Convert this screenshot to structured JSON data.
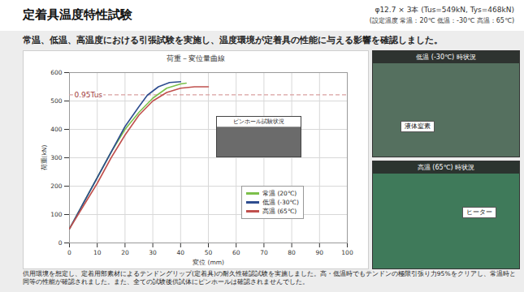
{
  "header": {
    "title": "定着具温度特性試験",
    "spec": "φ12.7 × 3本 (Tus=549kN, Tys=468kN)",
    "temperatures": "(設定温度 常温：20℃ 低温：-30℃ 高温：65℃)",
    "subtitle": "常温、低温、高温度における引張試験を実施し、温度環境が定着具の性能に与える影響を確認しました。"
  },
  "chart_data": {
    "type": "line",
    "title": "荷重－変位量曲線",
    "x_label": "変位 (mm)",
    "y_label": "荷重(kN)",
    "xlim": [
      0,
      100
    ],
    "xticks": [
      0,
      10,
      20,
      30,
      40,
      50,
      60,
      70,
      80,
      90,
      100
    ],
    "ylim": [
      0,
      600
    ],
    "yticks": [
      0,
      100,
      200,
      300,
      400,
      500,
      600
    ],
    "grid": true,
    "legend": "lower right",
    "annotation": {
      "text": "0.95Tus",
      "y": 521.55,
      "line_style": "dashed",
      "color": "#d9a0a0"
    },
    "series": [
      {
        "name": "常温 (20℃)",
        "color": "#7cc04a",
        "x": [
          0,
          5,
          10,
          15,
          20,
          25,
          30,
          35,
          40,
          42
        ],
        "values": [
          50,
          140,
          230,
          320,
          400,
          460,
          510,
          545,
          560,
          563
        ]
      },
      {
        "name": "低温 (-30℃)",
        "color": "#2e4d8f",
        "x": [
          0,
          5,
          10,
          15,
          20,
          25,
          28,
          32,
          36,
          40
        ],
        "values": [
          50,
          140,
          230,
          320,
          410,
          480,
          520,
          550,
          565,
          568
        ]
      },
      {
        "name": "高温 (65℃)",
        "color": "#c0504d",
        "x": [
          0,
          5,
          10,
          15,
          20,
          25,
          30,
          35,
          40,
          45,
          50
        ],
        "values": [
          50,
          130,
          210,
          300,
          380,
          450,
          500,
          530,
          545,
          550,
          550
        ]
      }
    ]
  },
  "inset": {
    "caption": "ピンホール試験状況"
  },
  "photos": [
    {
      "caption": "低温 (-30℃) 時状況",
      "label": "液体窒素"
    },
    {
      "caption": "高温 (65℃) 時状況",
      "label": "ヒーター"
    }
  ],
  "footer": "供用環境を想定し、定着用部素材によるテンドングリップ(定着具)の耐久性確認試験を実施しました。高・低温時でもテンドンの極限引張り力95%をクリアし、常温時と同等の性能が確認されました。また、全ての試験後供試体にピンホールは確認されませんでした。"
}
